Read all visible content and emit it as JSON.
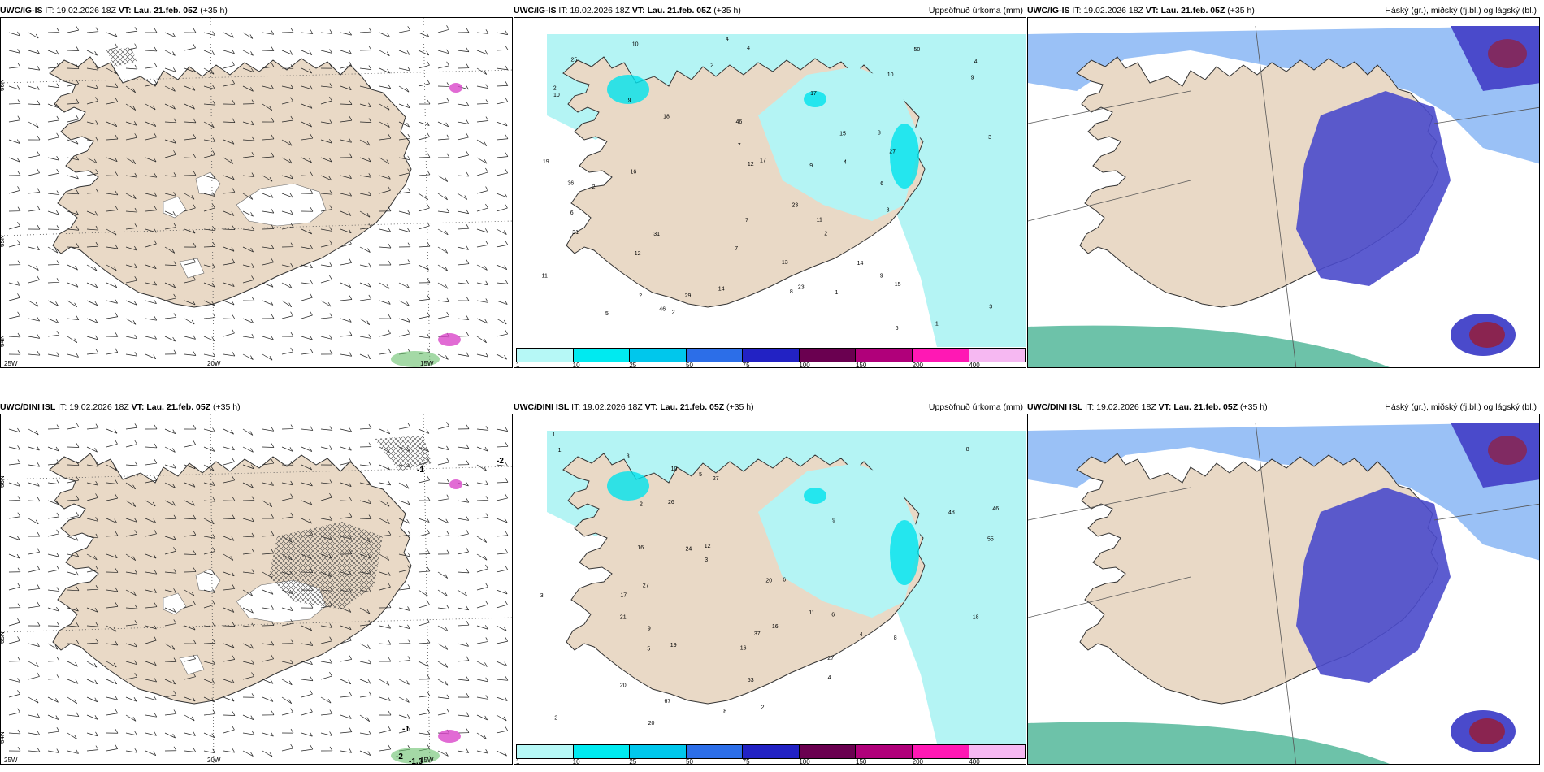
{
  "panels": [
    {
      "model": "UWC/IG-IS",
      "it_label": "IT:",
      "it_value": "19.02.2026 18Z",
      "vt_label": "VT:",
      "vt_value": "Lau. 21.feb. 05Z",
      "lead": "(+35 h)",
      "right_title": "",
      "type": "wind",
      "lat_labels": [
        "66N",
        "65N",
        "64N"
      ],
      "lon_labels": [
        "25W",
        "20W",
        "15W"
      ]
    },
    {
      "model": "UWC/IG-IS",
      "it_label": "IT:",
      "it_value": "19.02.2026 18Z",
      "vt_label": "VT:",
      "vt_value": "Lau. 21.feb. 05Z",
      "lead": "(+35 h)",
      "right_title": "Uppsöfnuð úrkoma (mm)",
      "type": "precip",
      "precip_values": [
        "19",
        "4",
        "8",
        "4",
        "2",
        "1",
        "2",
        "17",
        "46",
        "50",
        "17",
        "3",
        "4",
        "10",
        "9",
        "12",
        "23",
        "36",
        "23",
        "7",
        "14",
        "15",
        "9",
        "7",
        "2",
        "12",
        "11",
        "10",
        "2",
        "8",
        "6",
        "6",
        "9",
        "5",
        "46",
        "31",
        "27",
        "25",
        "29",
        "18",
        "13",
        "4",
        "3",
        "3",
        "7",
        "31",
        "10",
        "11",
        "14",
        "16",
        "15",
        "9",
        "2",
        "6",
        "1",
        "2"
      ]
    },
    {
      "model": "UWC/IG-IS",
      "it_label": "IT:",
      "it_value": "19.02.2026 18Z",
      "vt_label": "VT:",
      "vt_value": "Lau. 21.feb. 05Z",
      "lead": "(+35 h)",
      "right_title": "Háský (gr.), miðský (fj.bl.) og lágský (bl.)",
      "type": "clouds"
    },
    {
      "model": "UWC/DINI ISL",
      "it_label": "IT:",
      "it_value": "19.02.2026 18Z",
      "vt_label": "VT:",
      "vt_value": "Lau. 21.feb. 05Z",
      "lead": "(+35 h)",
      "right_title": "",
      "type": "wind",
      "lat_labels": [
        "66N",
        "65N",
        "64N"
      ],
      "lon_labels": [
        "25W",
        "20W",
        "15W"
      ],
      "pressure_labels": [
        "-1",
        "-1",
        "-2",
        "-1.3",
        "-2"
      ]
    },
    {
      "model": "UWC/DINI ISL",
      "it_label": "IT:",
      "it_value": "19.02.2026 18Z",
      "vt_label": "VT:",
      "vt_value": "Lau. 21.feb. 05Z",
      "lead": "(+35 h)",
      "right_title": "Uppsöfnuð úrkoma (mm)",
      "type": "precip",
      "precip_values": [
        "1",
        "1",
        "3",
        "8",
        "46",
        "27",
        "27",
        "19",
        "2",
        "4",
        "5",
        "6",
        "20",
        "21",
        "37",
        "24",
        "16",
        "20",
        "26",
        "12",
        "55",
        "53",
        "67",
        "27",
        "17",
        "16",
        "9",
        "8",
        "8",
        "5",
        "11",
        "10",
        "48",
        "18",
        "20",
        "16",
        "3",
        "3",
        "4",
        "9",
        "2",
        "2",
        "6"
      ]
    },
    {
      "model": "UWC/DINI ISL",
      "it_label": "IT:",
      "it_value": "19.02.2026 18Z",
      "vt_label": "VT:",
      "vt_value": "Lau. 21.feb. 05Z",
      "lead": "(+35 h)",
      "right_title": "Háský (gr.), miðský (fj.bl.) og lágský (bl.)",
      "type": "clouds"
    }
  ],
  "colorbar": {
    "labels": [
      "1",
      "10",
      "25",
      "50",
      "75",
      "100",
      "150",
      "200",
      "400"
    ],
    "colors": [
      "#b6f8f6",
      "#00eaf0",
      "#00c7ec",
      "#2c6ee8",
      "#2222c4",
      "#6a0050",
      "#b0007a",
      "#ff18b4",
      "#f6b8f2"
    ]
  },
  "colors": {
    "land": "#e9d9c6",
    "sea_wind": "#ffffff",
    "precip_light": "#b4f4f4",
    "precip_mid": "#00e2ec",
    "cloud_mid": "#4a4acb",
    "cloud_low": "#6fa6f2",
    "cloud_high": "#8a2450",
    "band_green": "#49b394"
  }
}
